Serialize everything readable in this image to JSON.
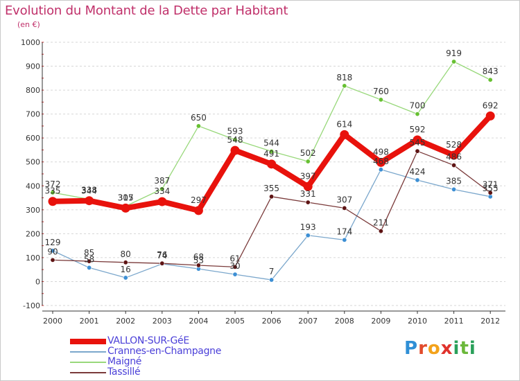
{
  "title": "Evolution du Montant de la Dette par Habitant",
  "subtitle": "(en €)",
  "logo_text": "Proxiti",
  "chart_data": {
    "type": "line",
    "title": "Evolution du Montant de la Dette par Habitant",
    "subtitle": "(en €)",
    "xlabel": "",
    "ylabel": "",
    "x": [
      2000,
      2001,
      2002,
      2003,
      2004,
      2005,
      2006,
      2007,
      2008,
      2009,
      2010,
      2011,
      2012
    ],
    "x_tick_labels": [
      "2000",
      "2001",
      "2002",
      "2003",
      "2004",
      "2005",
      "2006",
      "2007",
      "2008",
      "2009",
      "2010",
      "2011",
      "2012"
    ],
    "ylim": [
      -100,
      1000
    ],
    "y_ticks": [
      -100,
      0,
      100,
      200,
      300,
      400,
      500,
      600,
      700,
      800,
      900,
      1000
    ],
    "y_tick_labels": [
      "-100",
      "0",
      "100",
      "200",
      "300",
      "400",
      "500",
      "600",
      "700",
      "800",
      "900",
      "1000"
    ],
    "grid": "horizontal dashed",
    "legend_position": "bottom-left",
    "series": [
      {
        "name": "VALLON-SUR-GéE",
        "color": "#e8120c",
        "marker": "#e8120c",
        "emphasis": true,
        "values": [
          335,
          338,
          307,
          334,
          297,
          548,
          491,
          397,
          614,
          498,
          592,
          528,
          692
        ],
        "labels": [
          "335",
          "338",
          "307",
          "334",
          "297",
          "548",
          "491",
          "397",
          "614",
          "498",
          "592",
          "528",
          "692"
        ]
      },
      {
        "name": "Crannes-en-Champagne",
        "color": "#7ba7cc",
        "marker": "#3d8fd4",
        "emphasis": false,
        "values": [
          129,
          58,
          16,
          74,
          53,
          30,
          7,
          193,
          174,
          468,
          424,
          385,
          355
        ],
        "labels": [
          "129",
          "58",
          "16",
          "74",
          "53",
          "30",
          "7",
          "193",
          "174",
          "468",
          "424",
          "385",
          "355"
        ]
      },
      {
        "name": "Maigné",
        "color": "#98d87a",
        "marker": "#67c032",
        "emphasis": false,
        "values": [
          372,
          344,
          315,
          387,
          650,
          593,
          544,
          502,
          818,
          760,
          700,
          919,
          843
        ],
        "labels": [
          "372",
          "344",
          "315",
          "387",
          "650",
          "593",
          "544",
          "502",
          "818",
          "760",
          "700",
          "919",
          "843"
        ]
      },
      {
        "name": "Tassillé",
        "color": "#7a3a3a",
        "marker": "#5e1414",
        "emphasis": false,
        "values": [
          90,
          85,
          80,
          76,
          68,
          61,
          355,
          331,
          307,
          211,
          545,
          486,
          371
        ],
        "labels": [
          "90",
          "85",
          "80",
          "76",
          "68",
          "61",
          "355",
          "331",
          "307",
          "211",
          "545",
          "486",
          "371"
        ]
      }
    ]
  }
}
